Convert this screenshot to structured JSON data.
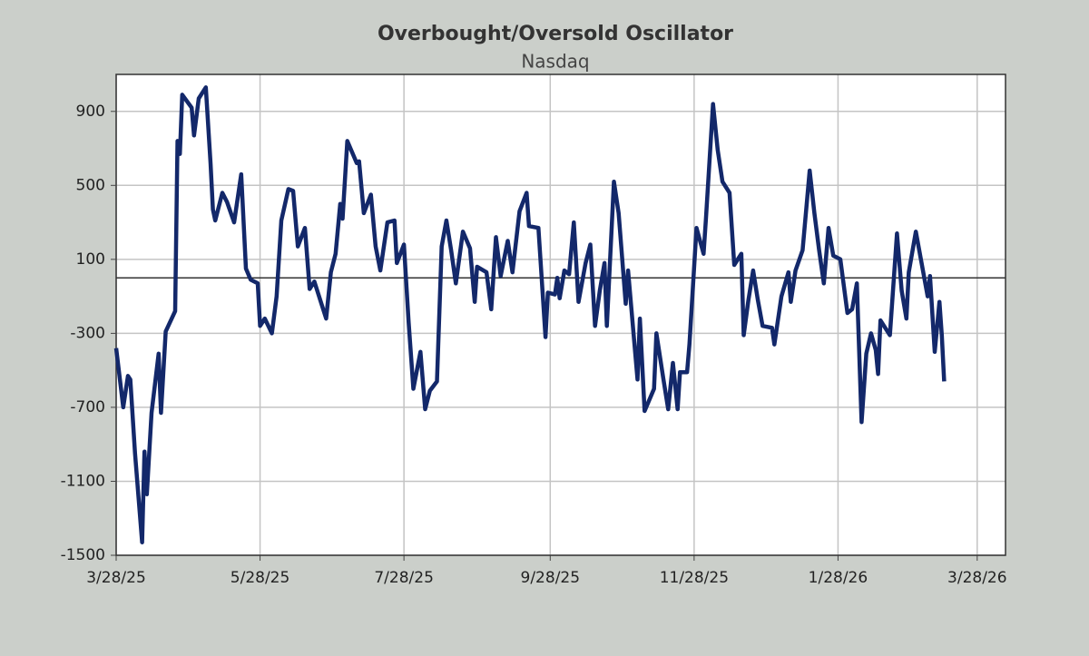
{
  "chart_data": {
    "type": "line",
    "title": "Overbought/Oversold Oscillator",
    "subtitle": "Nasdaq",
    "color": "#13286a",
    "x": [
      "3/28/25",
      "3/31/25",
      "4/2/25",
      "4/3/25",
      "4/5/25",
      "4/8/25",
      "4/9/25",
      "4/10/25",
      "4/12/25",
      "4/15/25",
      "4/16/25",
      "4/18/25",
      "4/22/25",
      "4/23/25",
      "4/24/25",
      "4/25/25",
      "4/29/25",
      "4/30/25",
      "5/2/25",
      "5/5/25",
      "5/7/25",
      "5/8/25",
      "5/9/25",
      "5/12/25",
      "5/14/25",
      "5/17/25",
      "5/20/25",
      "5/22/25",
      "5/24/25",
      "5/27/25",
      "5/28/25",
      "5/30/25",
      "6/2/25",
      "6/4/25",
      "6/6/25",
      "6/9/25",
      "6/11/25",
      "6/13/25",
      "6/16/25",
      "6/18/25",
      "6/20/25",
      "6/23/25",
      "6/25/25",
      "6/27/25",
      "6/29/25",
      "7/1/25",
      "7/2/25",
      "7/4/25",
      "7/8/25",
      "7/9/25",
      "7/11/25",
      "7/14/25",
      "7/16/25",
      "7/18/25",
      "7/21/25",
      "7/24/25",
      "7/25/25",
      "7/28/25",
      "7/30/25",
      "8/1/25",
      "8/4/25",
      "8/6/25",
      "8/8/25",
      "8/11/25",
      "8/13/25",
      "8/15/25",
      "8/17/25",
      "8/19/25",
      "8/22/25",
      "8/25/25",
      "8/27/25",
      "8/28/25",
      "9/1/25",
      "9/3/25",
      "9/5/25",
      "9/7/25",
      "9/10/25",
      "9/12/25",
      "9/15/25",
      "9/18/25",
      "9/19/25",
      "9/23/25",
      "9/26/25",
      "9/27/25",
      "9/30/25",
      "10/1/25",
      "10/2/25",
      "10/4/25",
      "10/6/25",
      "10/8/25",
      "10/10/25",
      "10/13/25",
      "10/15/25",
      "10/17/25",
      "10/19/25",
      "10/21/25",
      "10/22/25",
      "10/25/25",
      "10/27/25",
      "10/30/25",
      "10/31/25",
      "11/4/25",
      "11/5/25",
      "11/7/25",
      "11/11/25",
      "11/12/25",
      "11/15/25",
      "11/17/25",
      "11/19/25",
      "11/21/25",
      "11/22/25",
      "11/25/25",
      "11/26/25",
      "11/29/25",
      "12/2/25",
      "12/3/25",
      "12/6/25",
      "12/8/25",
      "12/10/25",
      "12/13/25",
      "12/15/25",
      "12/18/25",
      "12/19/25",
      "12/21/25",
      "12/23/25",
      "12/25/25",
      "12/27/25",
      "12/31/25",
      "1/1/26",
      "1/4/26",
      "1/7/26",
      "1/8/26",
      "1/10/26",
      "1/13/26",
      "1/16/26",
      "1/18/26",
      "1/20/26",
      "1/22/26",
      "1/24/26",
      "1/26/26",
      "1/29/26",
      "2/1/26",
      "2/3/26",
      "2/5/26",
      "2/7/26",
      "2/9/26",
      "2/11/26",
      "2/13/26",
      "2/14/26",
      "2/15/26",
      "2/19/26",
      "2/22/26",
      "2/24/26",
      "2/26/26",
      "2/27/26",
      "3/2/26",
      "3/4/26",
      "3/7/26",
      "3/8/26",
      "3/10/26",
      "3/12/26",
      "3/13/26",
      "3/14/26"
    ],
    "values": [
      -380,
      -700,
      -530,
      -550,
      -950,
      -1430,
      -940,
      -1170,
      -730,
      -410,
      -730,
      -290,
      -180,
      740,
      670,
      990,
      920,
      770,
      970,
      1030,
      620,
      370,
      310,
      460,
      410,
      300,
      560,
      50,
      -10,
      -30,
      -260,
      -220,
      -300,
      -100,
      310,
      480,
      470,
      170,
      270,
      -60,
      -20,
      -140,
      -220,
      30,
      130,
      400,
      320,
      740,
      620,
      630,
      350,
      450,
      170,
      40,
      300,
      310,
      80,
      180,
      -240,
      -600,
      -400,
      -710,
      -610,
      -560,
      170,
      310,
      150,
      -30,
      250,
      160,
      -130,
      60,
      30,
      -170,
      220,
      10,
      200,
      30,
      360,
      460,
      280,
      270,
      -320,
      -80,
      -90,
      0,
      -110,
      40,
      20,
      300,
      -130,
      80,
      180,
      -260,
      -70,
      80,
      -260,
      520,
      350,
      -140,
      40,
      -550,
      -220,
      -720,
      -600,
      -300,
      -550,
      -710,
      -460,
      -710,
      -510,
      -510,
      -360,
      270,
      130,
      320,
      940,
      690,
      520,
      460,
      70,
      130,
      -310,
      -120,
      40,
      -120,
      -260,
      -270,
      -360,
      -100,
      30,
      -130,
      40,
      150,
      580,
      350,
      150,
      -30,
      270,
      120,
      100,
      -190,
      -170,
      -30,
      -780,
      -410,
      -300,
      -390,
      -520,
      -230,
      -310,
      240,
      -70,
      -220,
      30,
      250,
      110,
      -100,
      10,
      -400,
      -130,
      -310,
      -560
    ],
    "xlim": [
      "3/28/25",
      "4/9/26"
    ],
    "xticks": [
      "3/28/25",
      "5/28/25",
      "7/28/25",
      "9/28/25",
      "11/28/25",
      "1/28/26",
      "3/28/26"
    ],
    "ylim": [
      -1500,
      1100
    ],
    "yticks": [
      -1500,
      -1100,
      -700,
      -300,
      100,
      500,
      900
    ],
    "reference_line": 0,
    "grid": true
  }
}
